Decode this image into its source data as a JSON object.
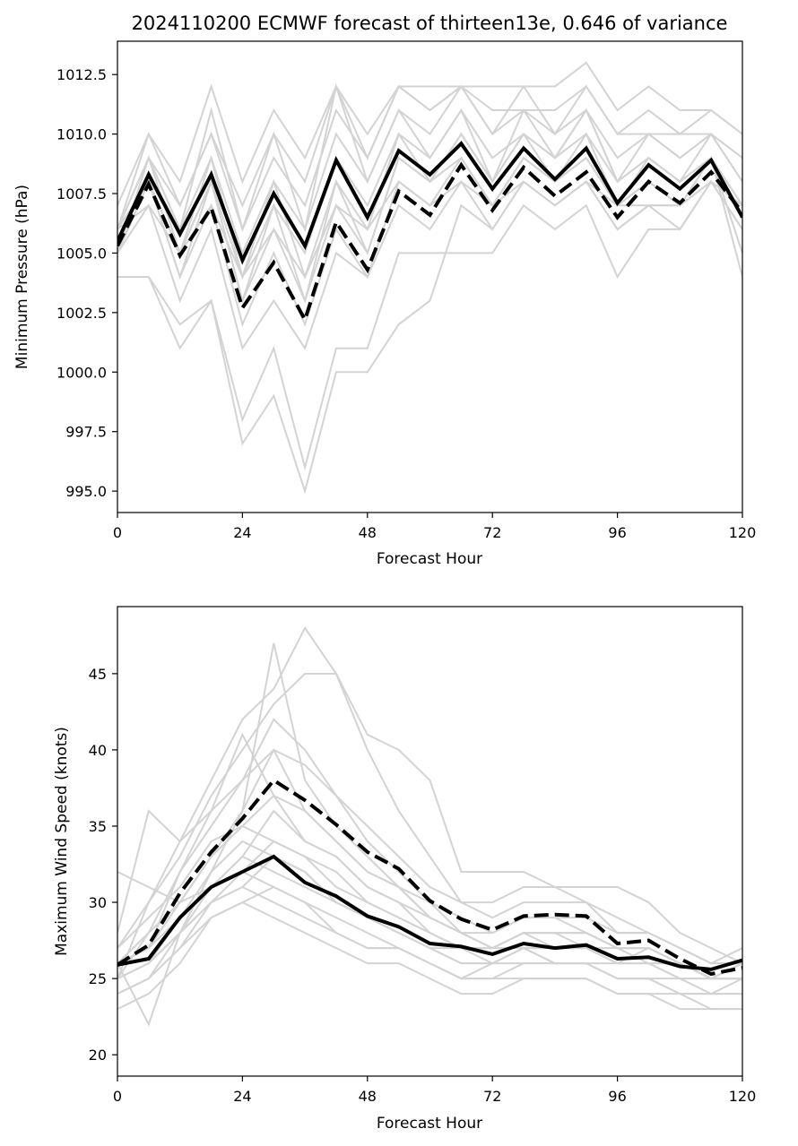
{
  "chart_data": [
    {
      "type": "line",
      "title": "2024110200 ECMWF forecast of thirteen13e, 0.646 of variance",
      "xlabel": "Forecast Hour",
      "ylabel": "Minimum Pressure (hPa)",
      "xlim": [
        0,
        120
      ],
      "ylim": [
        994.1,
        1013.9
      ],
      "xticks": [
        "0",
        "24",
        "48",
        "72",
        "96",
        "120"
      ],
      "yticks": [
        "995.0",
        "997.5",
        "1000.0",
        "1002.5",
        "1005.0",
        "1007.5",
        "1010.0",
        "1012.5"
      ],
      "grid": false,
      "colors": {
        "ensemble": "#d3d3d3",
        "mean": "#000000"
      },
      "x": [
        0,
        6,
        12,
        18,
        24,
        30,
        36,
        42,
        48,
        54,
        60,
        66,
        72,
        78,
        84,
        90,
        96,
        102,
        108,
        114,
        120
      ],
      "series": [
        {
          "style": "solid",
          "values": [
            1005.5,
            1008.3,
            1005.8,
            1008.3,
            1004.7,
            1007.5,
            1005.3,
            1008.9,
            1006.5,
            1009.3,
            1008.3,
            1009.6,
            1007.7,
            1009.4,
            1008.1,
            1009.4,
            1007.1,
            1008.7,
            1007.7,
            1008.9,
            1006.5
          ]
        },
        {
          "style": "dashed",
          "values": [
            1005.3,
            1007.9,
            1004.9,
            1006.9,
            1002.7,
            1004.6,
            1002.2,
            1006.3,
            1004.3,
            1007.6,
            1006.6,
            1008.7,
            1006.8,
            1008.6,
            1007.4,
            1008.4,
            1006.5,
            1008.0,
            1007.1,
            1008.4,
            1006.7
          ]
        }
      ],
      "ensemble": [
        [
          1005,
          1008,
          1005,
          1008,
          1004,
          1007,
          1005,
          1009,
          1007,
          1010,
          1009,
          1011,
          1009,
          1010,
          1009,
          1010,
          1008,
          1009,
          1008,
          1009,
          1007
        ],
        [
          1006,
          1009,
          1006,
          1009,
          1005,
          1008,
          1006,
          1010,
          1008,
          1011,
          1010,
          1012,
          1010,
          1011,
          1010,
          1011,
          1009,
          1010,
          1009,
          1010,
          1008
        ],
        [
          1007,
          1010,
          1007,
          1010,
          1006,
          1009,
          1007,
          1011,
          1009,
          1012,
          1011,
          1012,
          1011,
          1011,
          1011,
          1012,
          1010,
          1010,
          1010,
          1011,
          1010
        ],
        [
          1005,
          1009,
          1006,
          1011,
          1006,
          1010,
          1006,
          1012,
          1008,
          1011,
          1009,
          1011,
          1008,
          1010,
          1009,
          1011,
          1008,
          1009,
          1008,
          1010,
          1009
        ],
        [
          1006,
          1008,
          1004,
          1007,
          1002,
          1005,
          1002,
          1006,
          1004,
          1008,
          1007,
          1009,
          1007,
          1009,
          1008,
          1009,
          1007,
          1008,
          1007,
          1009,
          1007
        ],
        [
          1005,
          1007,
          1003,
          1006,
          1001,
          1003,
          1001,
          1005,
          1004,
          1007,
          1006,
          1008,
          1006,
          1008,
          1007,
          1008,
          1006,
          1007,
          1006,
          1008,
          1006
        ],
        [
          1004,
          1004,
          1001,
          1003,
          997,
          999,
          995,
          1000,
          1000,
          1002,
          1003,
          1007,
          1006,
          1008,
          1007,
          1008,
          1006,
          1007,
          1007,
          1008,
          1006
        ],
        [
          1004,
          1004,
          1002,
          1003,
          998,
          1001,
          996,
          1001,
          1001,
          1005,
          1005,
          1005,
          1005,
          1007,
          1006,
          1007,
          1004,
          1006,
          1006,
          1008,
          1006
        ],
        [
          1006,
          1010,
          1008,
          1012,
          1008,
          1011,
          1009,
          1012,
          1010,
          1012,
          1012,
          1012,
          1012,
          1012,
          1012,
          1013,
          1011,
          1012,
          1011,
          1011,
          1010
        ],
        [
          1006,
          1009,
          1007,
          1010,
          1007,
          1010,
          1008,
          1012,
          1009,
          1012,
          1011,
          1012,
          1010,
          1012,
          1010,
          1012,
          1010,
          1011,
          1010,
          1010,
          1009
        ],
        [
          1005,
          1008,
          1005,
          1008,
          1003,
          1006,
          1003,
          1007,
          1005,
          1009,
          1008,
          1010,
          1008,
          1010,
          1008,
          1010,
          1007,
          1009,
          1008,
          1009,
          1005
        ],
        [
          1006,
          1009,
          1005,
          1009,
          1004,
          1008,
          1004,
          1008,
          1006,
          1010,
          1008,
          1010,
          1008,
          1011,
          1009,
          1011,
          1008,
          1010,
          1009,
          1010,
          1008
        ],
        [
          1005,
          1008,
          1004,
          1008,
          1003,
          1007,
          1003,
          1008,
          1005,
          1009,
          1008,
          1009,
          1007,
          1009,
          1008,
          1009,
          1007,
          1008,
          1007,
          1009,
          1004
        ],
        [
          1006,
          1007,
          1005,
          1007,
          1004,
          1006,
          1004,
          1007,
          1006,
          1008,
          1007,
          1008,
          1007,
          1008,
          1007,
          1008,
          1007,
          1007,
          1007,
          1008,
          1007
        ]
      ]
    },
    {
      "type": "line",
      "title": "",
      "xlabel": "Forecast Hour",
      "ylabel": "Maximum Wind Speed (knots)",
      "xlim": [
        0,
        120
      ],
      "ylim": [
        18.6,
        49.4
      ],
      "xticks": [
        "0",
        "24",
        "48",
        "72",
        "96",
        "120"
      ],
      "yticks": [
        "20",
        "25",
        "30",
        "35",
        "40",
        "45"
      ],
      "grid": false,
      "colors": {
        "ensemble": "#d3d3d3",
        "mean": "#000000"
      },
      "x": [
        0,
        6,
        12,
        18,
        24,
        30,
        36,
        42,
        48,
        54,
        60,
        66,
        72,
        78,
        84,
        90,
        96,
        102,
        108,
        114,
        120
      ],
      "series": [
        {
          "style": "solid",
          "values": [
            25.9,
            26.3,
            29.0,
            31.0,
            32.0,
            33.0,
            31.3,
            30.4,
            29.1,
            28.4,
            27.3,
            27.1,
            26.6,
            27.3,
            27.0,
            27.2,
            26.3,
            26.4,
            25.8,
            25.6,
            26.2
          ]
        },
        {
          "style": "dashed",
          "values": [
            25.9,
            27.2,
            30.6,
            33.3,
            35.5,
            38.0,
            36.7,
            35.1,
            33.3,
            32.2,
            30.1,
            28.9,
            28.2,
            29.1,
            29.2,
            29.1,
            27.3,
            27.5,
            26.3,
            25.3,
            25.7
          ]
        }
      ],
      "ensemble": [
        [
          25,
          28,
          30,
          33,
          36,
          40,
          39,
          37,
          35,
          33,
          31,
          30,
          29,
          30,
          30,
          30,
          29,
          28,
          27,
          26,
          26
        ],
        [
          26,
          27,
          29,
          31,
          33,
          36,
          34,
          33,
          31,
          30,
          29,
          28,
          27,
          28,
          28,
          28,
          27,
          27,
          26,
          25,
          25
        ],
        [
          27,
          30,
          33,
          37,
          40,
          43,
          45,
          45,
          41,
          40,
          38,
          32,
          32,
          32,
          31,
          31,
          31,
          30,
          28,
          27,
          26
        ],
        [
          24,
          25,
          28,
          30,
          31,
          33,
          32,
          30,
          29,
          28,
          27,
          26,
          26,
          27,
          26,
          26,
          25,
          25,
          24,
          24,
          24
        ],
        [
          26,
          22,
          28,
          32,
          36,
          47,
          38,
          35,
          33,
          31,
          29,
          28,
          27,
          28,
          28,
          27,
          26,
          27,
          26,
          25,
          25
        ],
        [
          25,
          30,
          34,
          38,
          42,
          44,
          48,
          45,
          40,
          36,
          33,
          30,
          30,
          31,
          31,
          30,
          28,
          28,
          27,
          26,
          26
        ],
        [
          23,
          24,
          26,
          29,
          30,
          31,
          30,
          28,
          27,
          27,
          26,
          25,
          25,
          25,
          25,
          25,
          24,
          24,
          24,
          23,
          23
        ],
        [
          28,
          36,
          34,
          36,
          38,
          40,
          36,
          34,
          32,
          31,
          30,
          29,
          28,
          29,
          29,
          29,
          28,
          28,
          27,
          26,
          27
        ],
        [
          26,
          27,
          32,
          36,
          41,
          37,
          34,
          33,
          31,
          30,
          28,
          27,
          27,
          28,
          28,
          28,
          27,
          27,
          26,
          25,
          26
        ],
        [
          25,
          26,
          28,
          30,
          32,
          31,
          30,
          29,
          28,
          27,
          26,
          25,
          26,
          26,
          26,
          26,
          25,
          25,
          25,
          24,
          25
        ],
        [
          24,
          25,
          27,
          29,
          30,
          29,
          28,
          27,
          26,
          26,
          25,
          24,
          24,
          25,
          25,
          25,
          24,
          24,
          23,
          23,
          23
        ],
        [
          27,
          29,
          31,
          34,
          35,
          34,
          33,
          32,
          30,
          29,
          28,
          27,
          27,
          28,
          27,
          27,
          27,
          26,
          25,
          25,
          26
        ],
        [
          26,
          28,
          32,
          35,
          38,
          42,
          40,
          37,
          34,
          32,
          30,
          28,
          28,
          29,
          29,
          28,
          27,
          27,
          26,
          25,
          26
        ],
        [
          25,
          26,
          28,
          31,
          33,
          32,
          31,
          30,
          29,
          28,
          27,
          26,
          26,
          27,
          26,
          26,
          26,
          26,
          25,
          25,
          25
        ],
        [
          24,
          25,
          27,
          30,
          31,
          30,
          29,
          28,
          27,
          27,
          26,
          25,
          25,
          26,
          26,
          26,
          25,
          25,
          24,
          24,
          24
        ],
        [
          26,
          27,
          30,
          33,
          35,
          37,
          36,
          34,
          32,
          31,
          29,
          28,
          27,
          28,
          28,
          28,
          27,
          27,
          26,
          25,
          26
        ],
        [
          25,
          26,
          29,
          32,
          34,
          33,
          32,
          30,
          29,
          28,
          27,
          27,
          26,
          27,
          27,
          27,
          26,
          26,
          26,
          25,
          25
        ],
        [
          32,
          31,
          30,
          31,
          32,
          34,
          33,
          31,
          30,
          29,
          28,
          27,
          27,
          27,
          27,
          27,
          26,
          26,
          26,
          25,
          25
        ]
      ]
    }
  ]
}
